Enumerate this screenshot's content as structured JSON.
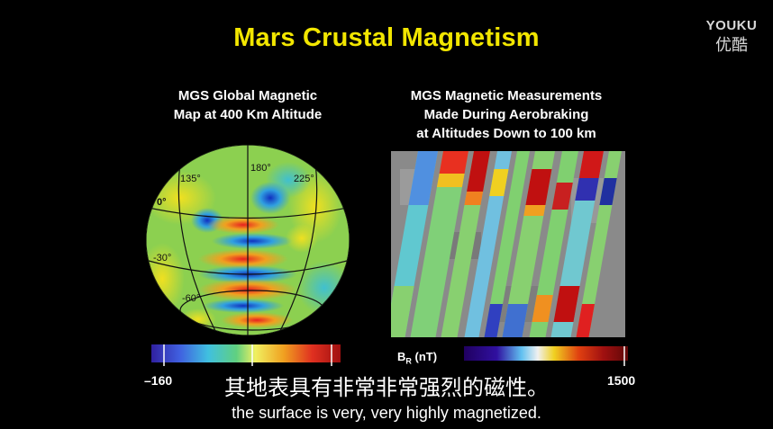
{
  "slide": {
    "title": "Mars Crustal Magnetism",
    "left_caption_line1": "MGS Global Magnetic",
    "left_caption_line2": "Map at 400 Km Altitude",
    "right_caption_line1": "MGS Magnetic Measurements",
    "right_caption_line2": "Made During Aerobraking",
    "right_caption_line3": "at Altitudes Down to 100 km",
    "globe_labels": {
      "lon_135": "135°",
      "lon_180": "180°",
      "lon_225": "225°",
      "lat_0": "0°",
      "lat_m30": "-30°",
      "lat_m60": "-60°"
    },
    "scale_min": "–160",
    "scale_max": "1500",
    "scale_unit_b": "B",
    "scale_unit_sub": "R",
    "scale_unit_rest": " (nT)"
  },
  "watermark": {
    "line1": "YOUKU",
    "line2": "优酷"
  },
  "subtitles": {
    "zh": "其地表具有非常非常强烈的磁性。",
    "en": "the surface is very, very highly magnetized."
  }
}
